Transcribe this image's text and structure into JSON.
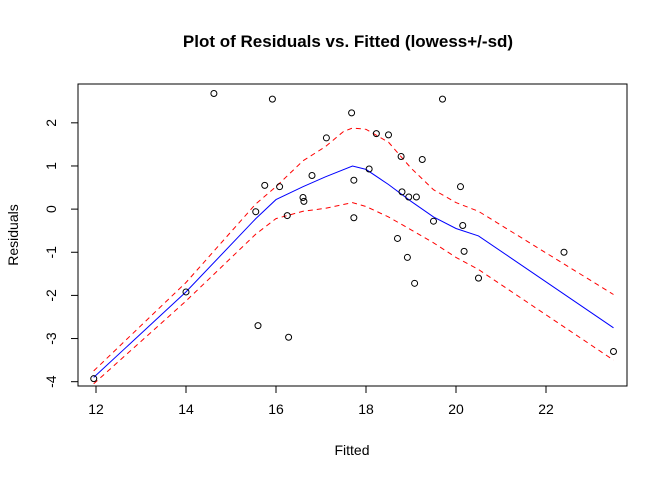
{
  "chart_data": {
    "type": "scatter",
    "title": "Plot of Residuals vs. Fitted   (lowess+/-sd)",
    "xlabel": "Fitted",
    "ylabel": "Residuals",
    "xlim": [
      11.6,
      23.8
    ],
    "ylim": [
      -4.1,
      2.9
    ],
    "xticks": [
      12,
      14,
      16,
      18,
      20,
      22
    ],
    "yticks": [
      -4,
      -3,
      -2,
      -1,
      0,
      1,
      2
    ],
    "grid": false,
    "legend": "none",
    "colors": {
      "points": "#000000",
      "lowess": "#0000ff",
      "sd_bands": "#ff0000"
    },
    "points": [
      {
        "x": 11.95,
        "y": -3.93
      },
      {
        "x": 14.0,
        "y": -1.92
      },
      {
        "x": 14.62,
        "y": 2.68
      },
      {
        "x": 15.55,
        "y": -0.06
      },
      {
        "x": 15.6,
        "y": -2.7
      },
      {
        "x": 15.75,
        "y": 0.55
      },
      {
        "x": 15.92,
        "y": 2.55
      },
      {
        "x": 16.08,
        "y": 0.52
      },
      {
        "x": 16.25,
        "y": -0.15
      },
      {
        "x": 16.28,
        "y": -2.97
      },
      {
        "x": 16.6,
        "y": 0.27
      },
      {
        "x": 16.62,
        "y": 0.18
      },
      {
        "x": 16.8,
        "y": 0.78
      },
      {
        "x": 17.12,
        "y": 1.65
      },
      {
        "x": 17.68,
        "y": 2.23
      },
      {
        "x": 17.73,
        "y": 0.67
      },
      {
        "x": 17.73,
        "y": -0.2
      },
      {
        "x": 18.07,
        "y": 0.93
      },
      {
        "x": 18.23,
        "y": 1.75
      },
      {
        "x": 18.5,
        "y": 1.72
      },
      {
        "x": 18.7,
        "y": -0.68
      },
      {
        "x": 18.78,
        "y": 1.22
      },
      {
        "x": 18.8,
        "y": 0.4
      },
      {
        "x": 18.92,
        "y": -1.12
      },
      {
        "x": 18.95,
        "y": 0.28
      },
      {
        "x": 19.08,
        "y": -1.72
      },
      {
        "x": 19.12,
        "y": 0.28
      },
      {
        "x": 19.25,
        "y": 1.15
      },
      {
        "x": 19.5,
        "y": -0.28
      },
      {
        "x": 19.7,
        "y": 2.55
      },
      {
        "x": 20.1,
        "y": 0.52
      },
      {
        "x": 20.15,
        "y": -0.38
      },
      {
        "x": 20.18,
        "y": -0.98
      },
      {
        "x": 20.5,
        "y": -1.6
      },
      {
        "x": 22.4,
        "y": -1.0
      },
      {
        "x": 23.5,
        "y": -3.3
      }
    ],
    "lowess": {
      "x": [
        11.95,
        14.0,
        15.55,
        16.0,
        16.6,
        17.1,
        17.7,
        18.0,
        18.5,
        19.0,
        19.5,
        20.0,
        20.5,
        23.5
      ],
      "y": [
        -3.9,
        -1.92,
        -0.22,
        0.22,
        0.52,
        0.75,
        1.0,
        0.92,
        0.57,
        0.18,
        -0.18,
        -0.45,
        -0.62,
        -2.75
      ]
    },
    "upper_band": {
      "x": [
        11.95,
        14.0,
        15.55,
        16.0,
        16.6,
        17.1,
        17.5,
        17.7,
        18.0,
        18.5,
        19.0,
        19.5,
        20.0,
        20.5,
        23.5
      ],
      "y": [
        -3.75,
        -1.7,
        0.12,
        0.52,
        1.12,
        1.45,
        1.8,
        1.88,
        1.85,
        1.55,
        0.95,
        0.45,
        0.15,
        -0.05,
        -1.98
      ]
    },
    "lower_band": {
      "x": [
        11.95,
        14.0,
        15.55,
        16.0,
        16.6,
        17.1,
        17.7,
        18.0,
        18.5,
        19.0,
        19.5,
        20.0,
        20.5,
        23.5
      ],
      "y": [
        -4.05,
        -2.13,
        -0.58,
        -0.22,
        -0.05,
        0.02,
        0.15,
        0.06,
        -0.18,
        -0.48,
        -0.78,
        -1.12,
        -1.4,
        -3.5
      ]
    }
  }
}
